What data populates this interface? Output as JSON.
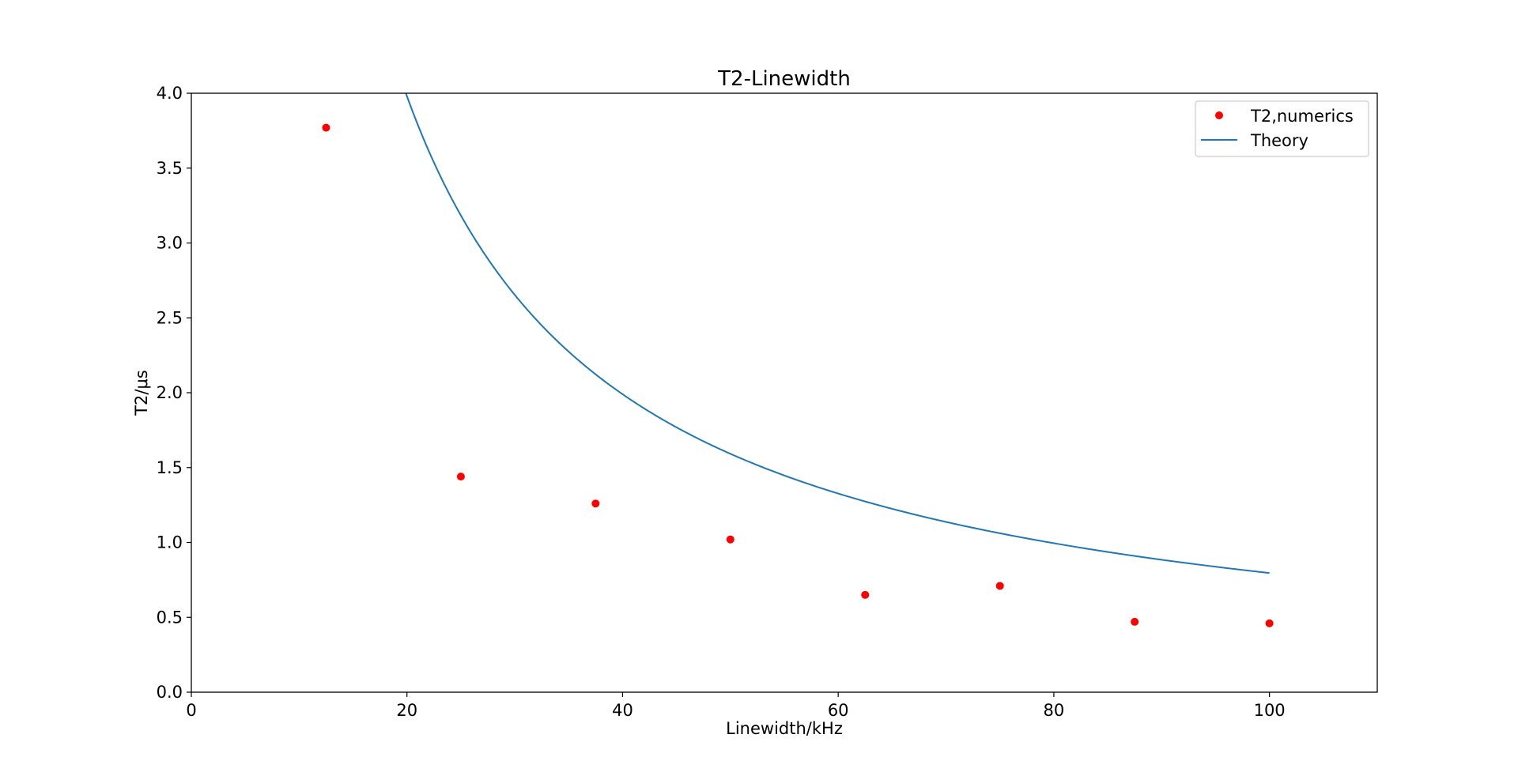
{
  "chart_data": {
    "type": "scatter",
    "title": "T2-Linewidth",
    "xlabel": "Linewidth/kHz",
    "ylabel": "T2/μs",
    "xlim": [
      0,
      110
    ],
    "ylim": [
      0.0,
      4.0
    ],
    "x_ticks": [
      0,
      20,
      40,
      60,
      80,
      100
    ],
    "x_tick_labels": [
      "0",
      "20",
      "40",
      "60",
      "80",
      "100"
    ],
    "y_ticks": [
      0.0,
      0.5,
      1.0,
      1.5,
      2.0,
      2.5,
      3.0,
      3.5,
      4.0
    ],
    "y_tick_labels": [
      "0.0",
      "0.5",
      "1.0",
      "1.5",
      "2.0",
      "2.5",
      "3.0",
      "3.5",
      "4.0"
    ],
    "grid": false,
    "legend_position": "top-right",
    "series": [
      {
        "name": "T2,numerics",
        "kind": "scatter",
        "color": "#ff0000",
        "x": [
          12.5,
          25,
          37.5,
          50,
          62.5,
          75,
          87.5,
          100
        ],
        "y": [
          3.77,
          1.44,
          1.26,
          1.02,
          0.65,
          0.71,
          0.47,
          0.46
        ]
      },
      {
        "name": "Theory",
        "kind": "line",
        "color": "#1f77b4",
        "x_range": [
          12.5,
          100
        ],
        "relation": "T2 = 79.6 / Linewidth"
      }
    ]
  }
}
